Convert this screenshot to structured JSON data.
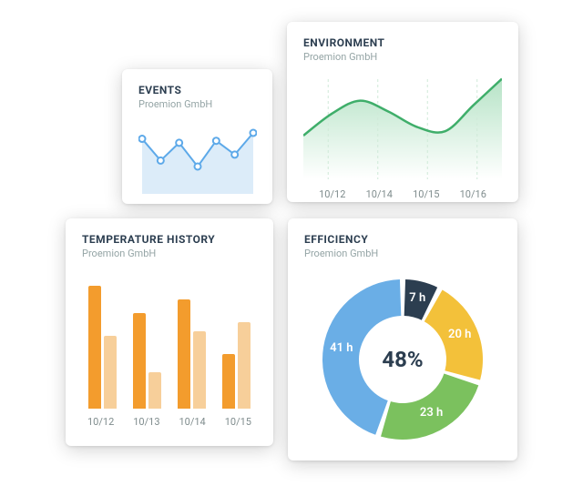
{
  "events": {
    "title": "EVENTS",
    "subtitle": "Proemion GmbH",
    "type": "line",
    "points": [
      52,
      30,
      48,
      24,
      50,
      36,
      58
    ],
    "line_color": "#5da9e9",
    "fill_color": "#dcecf9",
    "marker_color": "#5da9e9",
    "marker_fill": "#ffffff",
    "marker_radius": 3.5,
    "ylim": [
      0,
      70
    ]
  },
  "environment": {
    "title": "ENVIRONMENT",
    "subtitle": "Proemion GmbH",
    "type": "area",
    "xlabels": [
      "10/12",
      "10/14",
      "10/15",
      "10/16"
    ],
    "points": [
      40,
      60,
      72,
      62,
      48,
      44,
      68,
      92
    ],
    "line_color": "#3fae6a",
    "fill_top": "#b6e3c6",
    "fill_bottom": "#ffffff",
    "grid_color": "#cfe9d8",
    "ylim": [
      0,
      100
    ]
  },
  "temperature": {
    "title": "TEMPERATURE HISTORY",
    "subtitle": "Proemion GmbH",
    "type": "bar",
    "xlabels": [
      "10/12",
      "10/13",
      "10/14",
      "10/15"
    ],
    "groups": [
      {
        "a": 135,
        "b": 80
      },
      {
        "a": 105,
        "b": 40
      },
      {
        "a": 120,
        "b": 85
      },
      {
        "a": 60,
        "b": 95
      }
    ],
    "bar_color_a": "#f39c2d",
    "bar_color_b": "#f7cf9a",
    "ylim_max": 150
  },
  "efficiency": {
    "title": "EFFICIENCY",
    "subtitle": "Proemion GmbH",
    "type": "donut",
    "center_value": "48%",
    "segments": [
      {
        "label": "7 h",
        "value": 7,
        "color": "#2c3e50"
      },
      {
        "label": "20 h",
        "value": 20,
        "color": "#f3c13a"
      },
      {
        "label": "23 h",
        "value": 23,
        "color": "#7bc15e"
      },
      {
        "label": "41 h",
        "value": 41,
        "color": "#6aaee6"
      }
    ],
    "inner_radius": 48,
    "outer_radius": 88,
    "gap_deg": 4,
    "background_color": "#ffffff"
  }
}
